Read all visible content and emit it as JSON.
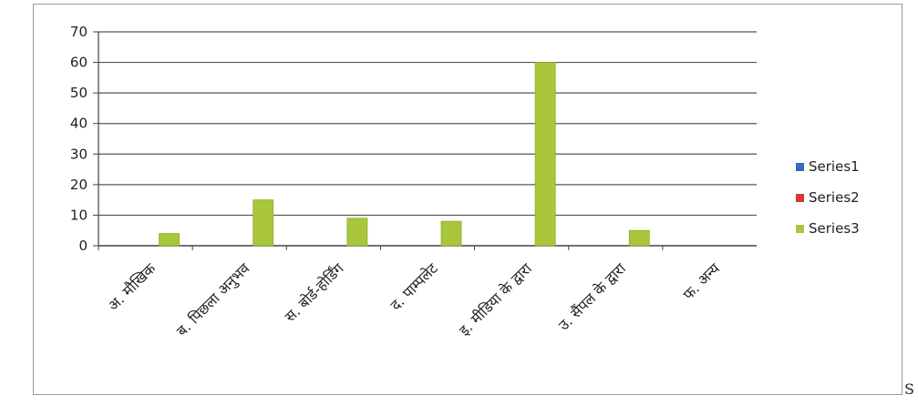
{
  "chart_data": {
    "type": "bar",
    "title": "",
    "xlabel": "",
    "ylabel": "",
    "ylim": [
      0,
      70
    ],
    "yticks": [
      0,
      10,
      20,
      30,
      40,
      50,
      60,
      70
    ],
    "grid": true,
    "legend_position": "right",
    "categories": [
      "अ. मौखिक",
      "ब. पिछला अनुभव",
      "स. बोर्ड-होर्डिंग",
      "द. पाम्पलेट",
      "इ. मीडिया के द्वारा",
      "उ. सैंपल के द्वारा",
      "फ. अन्य"
    ],
    "series": [
      {
        "name": "Series1",
        "color": "#2e6fb7",
        "values": [
          0,
          0,
          0,
          0,
          0,
          0,
          0
        ]
      },
      {
        "name": "Series2",
        "color": "#d9363e",
        "values": [
          0,
          0,
          0,
          0,
          0,
          0,
          0
        ]
      },
      {
        "name": "Series3",
        "color": "#a9c63c",
        "values": [
          4,
          15,
          9,
          8,
          60,
          5,
          0
        ]
      }
    ]
  },
  "trailing_text": "S"
}
